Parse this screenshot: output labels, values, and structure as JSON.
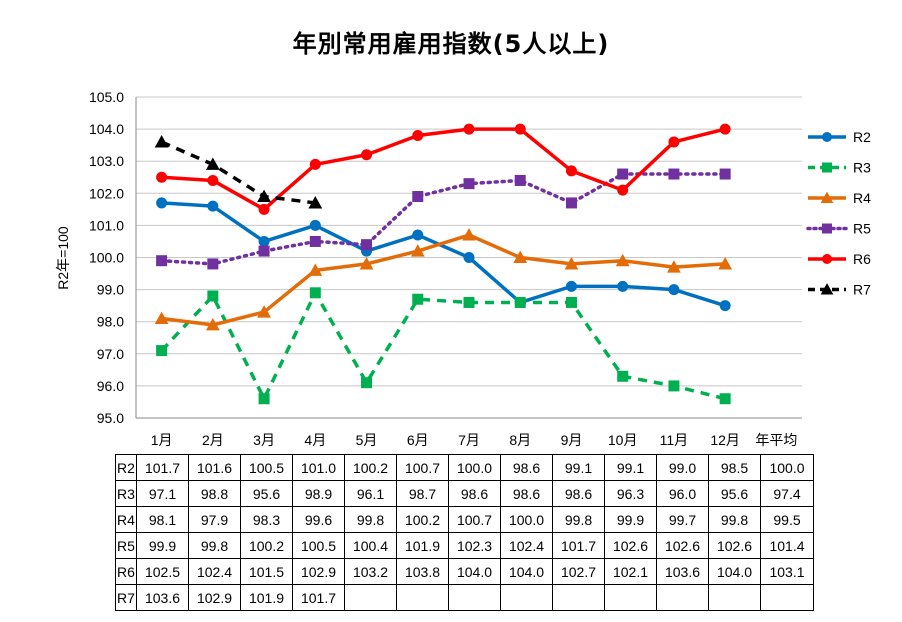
{
  "title": "年別常用雇用指数(5人以上)",
  "chart_data": {
    "type": "line",
    "ylabel": "R2年=100",
    "xlabel": "",
    "ylim": [
      95.0,
      105.0
    ],
    "ytick_step": 1.0,
    "grid": true,
    "legend_position": "right",
    "categories": [
      "1月",
      "2月",
      "3月",
      "4月",
      "5月",
      "6月",
      "7月",
      "8月",
      "9月",
      "10月",
      "11月",
      "12月"
    ],
    "average_label": "年平均",
    "series": [
      {
        "name": "R2",
        "color": "#0070C0",
        "style": "solid",
        "marker": "circle",
        "values": [
          101.7,
          101.6,
          100.5,
          101.0,
          100.2,
          100.7,
          100.0,
          98.6,
          99.1,
          99.1,
          99.0,
          98.5
        ],
        "average": 100.0
      },
      {
        "name": "R3",
        "color": "#00B050",
        "style": "dashed",
        "marker": "square",
        "values": [
          97.1,
          98.8,
          95.6,
          98.9,
          96.1,
          98.7,
          98.6,
          98.6,
          98.6,
          96.3,
          96.0,
          95.6
        ],
        "average": 97.4
      },
      {
        "name": "R4",
        "color": "#E36C09",
        "style": "solid",
        "marker": "triangle",
        "values": [
          98.1,
          97.9,
          98.3,
          99.6,
          99.8,
          100.2,
          100.7,
          100.0,
          99.8,
          99.9,
          99.7,
          99.8
        ],
        "average": 99.5
      },
      {
        "name": "R5",
        "color": "#7030A0",
        "style": "dotted",
        "marker": "square",
        "values": [
          99.9,
          99.8,
          100.2,
          100.5,
          100.4,
          101.9,
          102.3,
          102.4,
          101.7,
          102.6,
          102.6,
          102.6
        ],
        "average": 101.4
      },
      {
        "name": "R6",
        "color": "#FF0000",
        "style": "solid",
        "marker": "circle",
        "values": [
          102.5,
          102.4,
          101.5,
          102.9,
          103.2,
          103.8,
          104.0,
          104.0,
          102.7,
          102.1,
          103.6,
          104.0
        ],
        "average": 103.1
      },
      {
        "name": "R7",
        "color": "#000000",
        "style": "dashed",
        "marker": "triangle",
        "values": [
          103.6,
          102.9,
          101.9,
          101.7,
          null,
          null,
          null,
          null,
          null,
          null,
          null,
          null
        ],
        "average": null
      }
    ]
  }
}
